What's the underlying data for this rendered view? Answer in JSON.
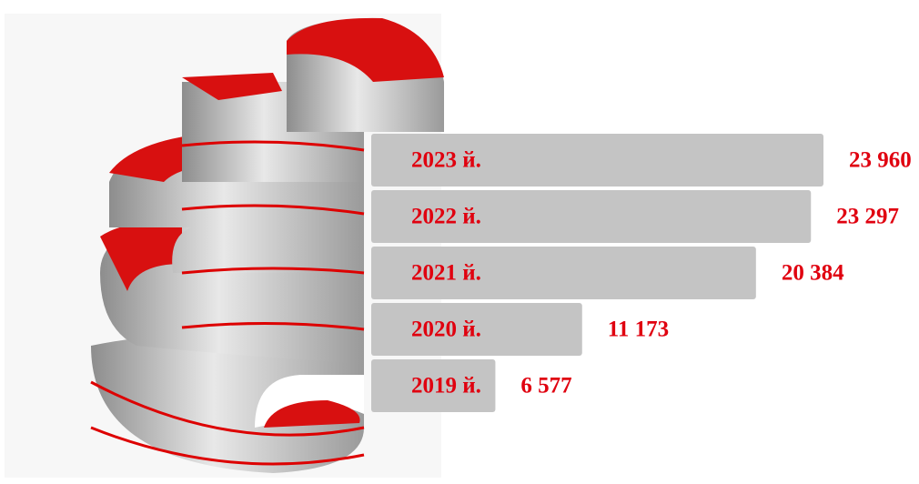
{
  "chart_data": {
    "type": "bar",
    "orientation": "horizontal",
    "categories": [
      "2023 й.",
      "2022 й.",
      "2021 й.",
      "2020 й.",
      "2019 й."
    ],
    "values": [
      23960,
      23297,
      20384,
      11173,
      6577
    ],
    "value_labels": [
      "23 960",
      "23 297",
      "20 384",
      "11 173",
      "6 577"
    ],
    "color": "#c4c4c4",
    "label_color": "#e0000f"
  }
}
